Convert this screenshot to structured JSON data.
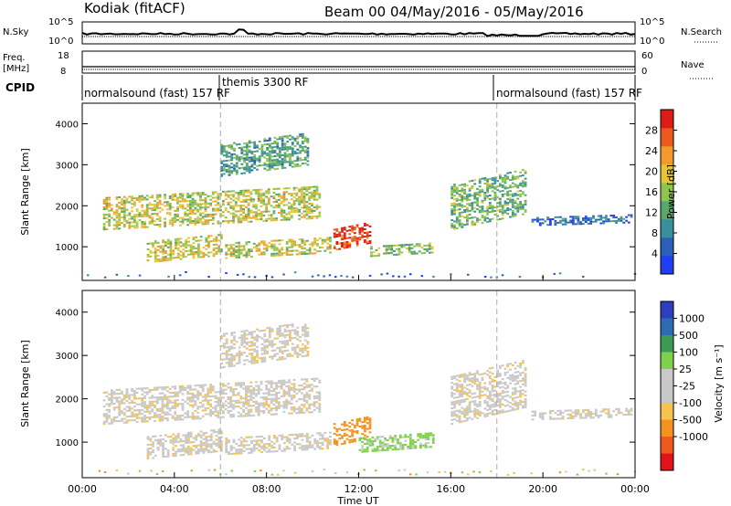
{
  "header": {
    "station": "Kodiak (fitACF)",
    "beam_date": "Beam 00  04/May/2016 - 05/May/2016"
  },
  "colors": {
    "power": [
      "#1f3ff0",
      "#2c5fb8",
      "#3a8f9a",
      "#59a86a",
      "#8fc44e",
      "#e7c43a",
      "#f29a2e",
      "#ea5a1e",
      "#dd1c16"
    ],
    "velocity": [
      "#e0141a",
      "#ee5a1d",
      "#f3931f",
      "#f6c34e",
      "#c8c8c8",
      "#cbc8c8",
      "#7ed24b",
      "#3c9a54",
      "#2f6bb3",
      "#2d3fbd"
    ]
  },
  "chart_data": [
    {
      "type": "line",
      "name": "noise",
      "left_labels": [
        "N.Sky",
        "10^5",
        "10^0"
      ],
      "right_labels": [
        "N.Search",
        "10^5",
        "10^0"
      ]
    },
    {
      "type": "line",
      "name": "freq-nave",
      "left_labels": [
        "Freq.",
        "[MHz]",
        "18",
        "8"
      ],
      "right_labels": [
        "Nave",
        "60",
        "0"
      ]
    },
    {
      "type": "table",
      "name": "cpid",
      "label": "CPID",
      "segments": [
        "normalsound (fast) 157 RF",
        "themis 3300 RF",
        "normalsound (fast) 157 RF"
      ]
    },
    {
      "type": "heatmap",
      "name": "power",
      "ylabel": "Slant Range [km]",
      "ylim": [
        180,
        4500
      ],
      "yticks": [
        "1000",
        "2000",
        "3000",
        "4000"
      ],
      "colorbar_label": "Power [dB]",
      "colorbar_ticks": [
        "4",
        "8",
        "12",
        "16",
        "20",
        "24",
        "28"
      ],
      "echo_regions": [
        {
          "t0": 0.9,
          "t1": 10.3,
          "r0": 1400,
          "r1": 2200,
          "intensity": 0.55
        },
        {
          "t0": 2.8,
          "t1": 6.0,
          "r0": 600,
          "r1": 1100,
          "intensity": 0.6
        },
        {
          "t0": 6.2,
          "t1": 10.8,
          "r0": 700,
          "r1": 1100,
          "intensity": 0.55
        },
        {
          "t0": 6.0,
          "t1": 9.8,
          "r0": 2700,
          "r1": 3500,
          "intensity": 0.35
        },
        {
          "t0": 10.9,
          "t1": 12.5,
          "r0": 900,
          "r1": 1400,
          "intensity": 0.95
        },
        {
          "t0": 12.5,
          "t1": 15.2,
          "r0": 750,
          "r1": 1000,
          "intensity": 0.45
        },
        {
          "t0": 16.0,
          "t1": 19.2,
          "r0": 1400,
          "r1": 2500,
          "intensity": 0.4
        },
        {
          "t0": 19.5,
          "t1": 23.8,
          "r0": 1500,
          "r1": 1700,
          "intensity": 0.15
        }
      ]
    },
    {
      "type": "heatmap",
      "name": "velocity",
      "ylabel": "Slant Range [km]",
      "ylim": [
        180,
        4500
      ],
      "yticks": [
        "1000",
        "2000",
        "3000",
        "4000"
      ],
      "colorbar_label": "Velocity [m s⁻¹]",
      "colorbar_ticks": [
        "1000",
        "500",
        "100",
        "25",
        "-25",
        "-100",
        "-500",
        "-1000"
      ],
      "echo_regions": [
        {
          "t0": 0.9,
          "t1": 10.3,
          "r0": 1400,
          "r1": 2200,
          "v": 0
        },
        {
          "t0": 2.8,
          "t1": 6.0,
          "r0": 600,
          "r1": 1100,
          "v": 0
        },
        {
          "t0": 6.2,
          "t1": 10.8,
          "r0": 700,
          "r1": 1100,
          "v": 0
        },
        {
          "t0": 6.0,
          "t1": 9.8,
          "r0": 2700,
          "r1": 3500,
          "v": 0
        },
        {
          "t0": 10.9,
          "t1": 12.5,
          "r0": 900,
          "r1": 1400,
          "v": -150
        },
        {
          "t0": 12.0,
          "t1": 15.2,
          "r0": 750,
          "r1": 1100,
          "v": 120
        },
        {
          "t0": 16.0,
          "t1": 19.2,
          "r0": 1400,
          "r1": 2500,
          "v": 0
        },
        {
          "t0": 19.5,
          "t1": 23.8,
          "r0": 1500,
          "r1": 1700,
          "v": 0
        }
      ]
    }
  ],
  "xaxis": {
    "label": "Time UT",
    "range_hours": [
      0,
      24
    ],
    "ticks": [
      "00:00",
      "04:00",
      "08:00",
      "12:00",
      "16:00",
      "20:00",
      "00:00"
    ]
  }
}
